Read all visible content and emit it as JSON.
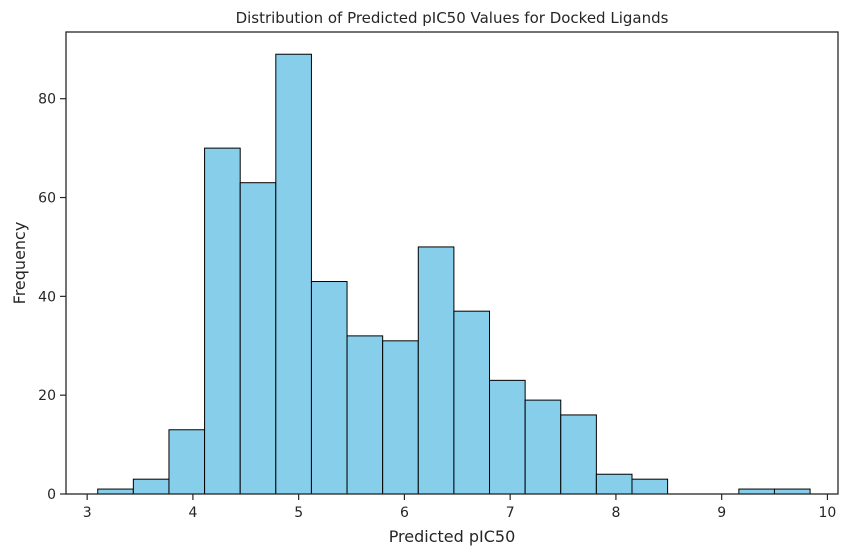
{
  "chart_data": {
    "type": "bar",
    "title": "Distribution of Predicted pIC50 Values for Docked Ligands",
    "xlabel": "Predicted pIC50",
    "ylabel": "Frequency",
    "xlim": [
      2.8,
      10.1
    ],
    "ylim": [
      0,
      93.5
    ],
    "x_ticks": [
      3,
      4,
      5,
      6,
      7,
      8,
      9,
      10
    ],
    "y_ticks": [
      0,
      20,
      40,
      60,
      80
    ],
    "bin_start": 3.1,
    "bin_width": 0.3368,
    "values": [
      1,
      3,
      13,
      70,
      63,
      89,
      43,
      32,
      31,
      50,
      37,
      23,
      19,
      16,
      4,
      3,
      0,
      0,
      1,
      1
    ],
    "bar_color": "#87ceeb",
    "edge_color": "#000000",
    "grid": false
  }
}
